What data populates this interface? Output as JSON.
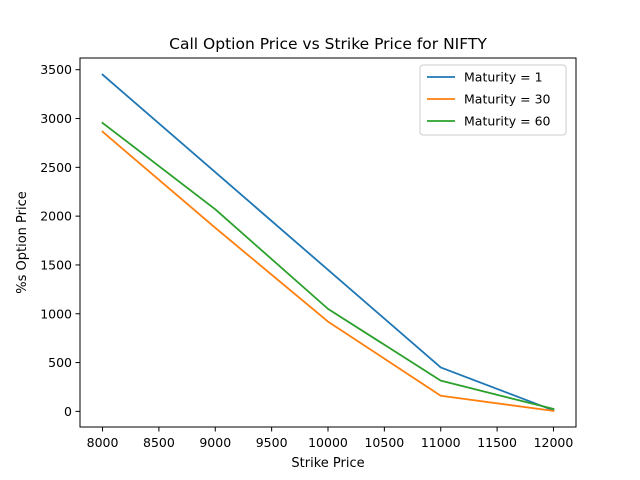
{
  "chart_data": {
    "type": "line",
    "title": "Call Option Price vs Strike Price for NIFTY",
    "xlabel": "Strike Price",
    "ylabel": "%s Option Price",
    "x": [
      8000,
      9000,
      10000,
      11000,
      12000
    ],
    "xlim": [
      7800,
      12200
    ],
    "ylim": [
      -160,
      3620
    ],
    "xticks": [
      8000,
      8500,
      9000,
      9500,
      10000,
      10500,
      11000,
      11500,
      12000
    ],
    "yticks": [
      0,
      500,
      1000,
      1500,
      2000,
      2500,
      3000,
      3500
    ],
    "grid": false,
    "legend_position": "top-right",
    "series": [
      {
        "name": "Maturity = 1",
        "color": "#1f77b4",
        "values": [
          3450,
          2450,
          1450,
          450,
          10
        ]
      },
      {
        "name": "Maturity = 30",
        "color": "#ff7f0e",
        "values": [
          2865,
          1880,
          920,
          160,
          5
        ]
      },
      {
        "name": "Maturity = 60",
        "color": "#2ca02c",
        "values": [
          2955,
          2070,
          1050,
          315,
          25
        ]
      }
    ]
  }
}
